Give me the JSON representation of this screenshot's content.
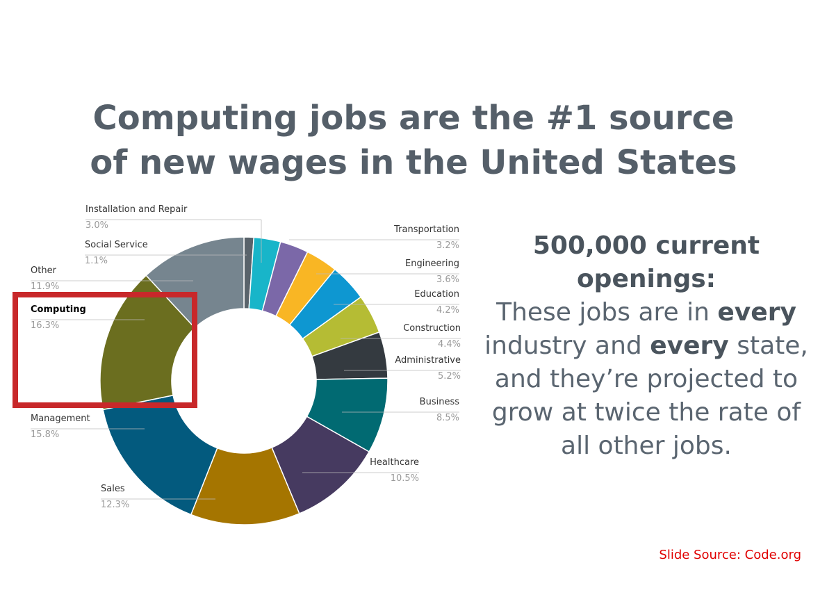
{
  "title_lines": [
    "Computing jobs are the #1 source",
    "of new wages in the United States"
  ],
  "chart_data": {
    "type": "donut",
    "categories": [
      "Social Service",
      "Installation and Repair",
      "Transportation",
      "Engineering",
      "Education",
      "Construction",
      "Administrative",
      "Business",
      "Healthcare",
      "Sales",
      "Management",
      "Computing",
      "Other"
    ],
    "values": [
      1.1,
      3.0,
      3.2,
      3.6,
      4.2,
      4.4,
      5.2,
      8.5,
      10.5,
      12.3,
      15.8,
      16.3,
      11.9
    ],
    "value_labels": [
      "1.1%",
      "3.0%",
      "3.2%",
      "3.6%",
      "4.2%",
      "4.4%",
      "5.2%",
      "8.5%",
      "10.5%",
      "12.3%",
      "15.8%",
      "16.3%",
      "11.9%"
    ],
    "colors": [
      "#59636b",
      "#18b5c9",
      "#7b68a8",
      "#f9b624",
      "#0e97d1",
      "#b5bc34",
      "#343a40",
      "#016a72",
      "#463a60",
      "#a57500",
      "#035a7e",
      "#6b6e1f",
      "#76858f"
    ]
  },
  "side_text": {
    "heading": "500,000 current openings:",
    "parts": [
      "These jobs are in ",
      "every",
      " industry and ",
      "every",
      " state, and they’re projected to grow at twice the rate of all other jobs."
    ]
  },
  "source": "Slide Source: Code.org"
}
